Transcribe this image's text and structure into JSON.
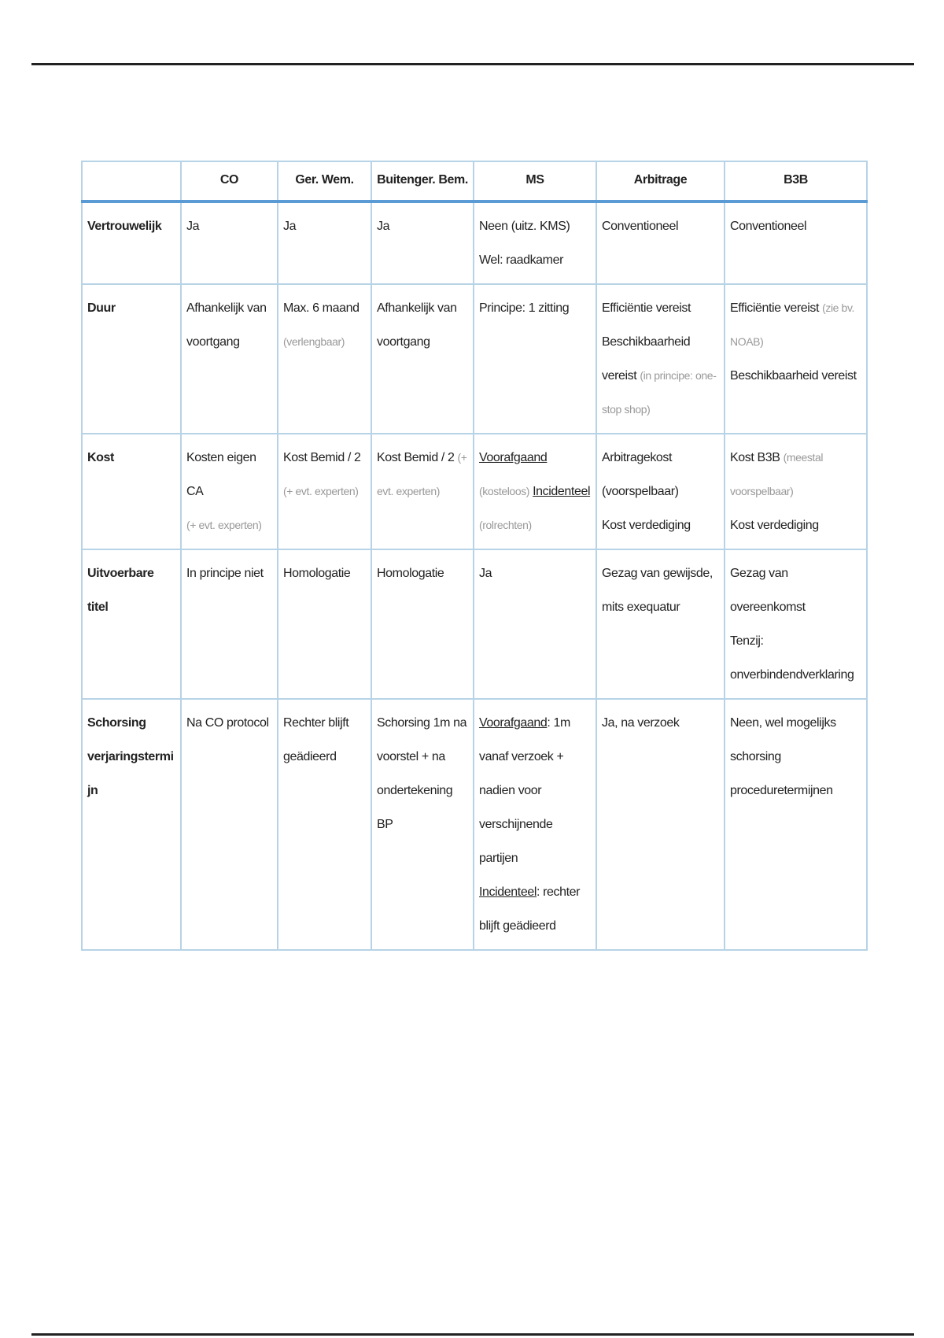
{
  "table": {
    "header": [
      "CO",
      "Ger. Wem.",
      "Buitenger. Bem.",
      "MS",
      "Arbitrage",
      "B3B"
    ],
    "rows": [
      [
        "Vertrouwelijk",
        [
          "Ja"
        ],
        [
          "Ja"
        ],
        [
          "Ja"
        ],
        [
          "Neen (uitz. KMS)",
          "Wel: raadkamer"
        ],
        [
          "Conventioneel"
        ],
        [
          "Conventioneel"
        ]
      ],
      [
        "Duur",
        [
          "Afhankelijk van voortgang"
        ],
        [
          "Max. 6 maand",
          "(verlengbaar)"
        ],
        [
          "Afhankelijk van voortgang"
        ],
        [
          "Principe: 1 zitting"
        ],
        [
          "Efficiëntie vereist",
          "Beschikbaarheid vereist",
          "(in principe: one-stop shop)"
        ],
        [
          "Efficiëntie vereist",
          "(zie bv. NOAB)",
          "Beschikbaarheid vereist"
        ]
      ],
      [
        "Kost",
        [
          "Kosten eigen CA",
          "(+ evt. experten)"
        ],
        [
          "Kost Bemid / 2",
          "(+ evt. experten)"
        ],
        [
          "Kost Bemid / 2",
          "(+ evt. experten)"
        ],
        [
          "Voorafgaand",
          "(kosteloos)",
          "Incidenteel",
          "(rolrechten)"
        ],
        [
          "Arbitragekost (voorspelbaar)",
          "Kost verdediging"
        ],
        [
          "Kost B3B",
          "(meestal voorspelbaar)",
          "Kost verdediging"
        ]
      ],
      [
        "Uitvoerbare titel",
        [
          "In principe niet"
        ],
        [
          "Homologatie"
        ],
        [
          "Homologatie"
        ],
        [
          "Ja"
        ],
        [
          "Gezag van gewijsde, mits exequatur"
        ],
        [
          "Gezag van overeenkomst",
          "Tenzij: onverbindendverklaring"
        ]
      ],
      [
        "Schorsing verjaringstermijn",
        [
          "Na CO protocol"
        ],
        [
          "Rechter blijft geädieerd"
        ],
        [
          "Schorsing 1m na voorstel + na ondertekening BP"
        ],
        [
          "Voorafgaand",
          ": 1m vanaf verzoek + nadien voor verschijnende partijen",
          "Incidenteel",
          ": rechter blijft geädieerd"
        ],
        [
          "Ja, na verzoek"
        ],
        [
          "Neen, wel mogelijks schorsing proceduretermijnen"
        ]
      ]
    ]
  }
}
